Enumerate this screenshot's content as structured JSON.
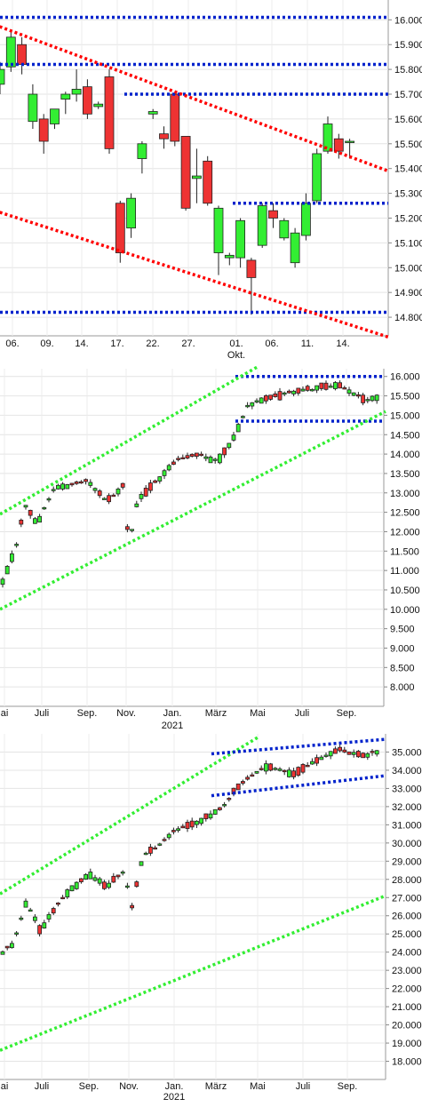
{
  "chart_data": [
    {
      "type": "candlestick",
      "title": "",
      "y_ticks": [
        16000,
        15900,
        15800,
        15700,
        15600,
        15500,
        15400,
        15300,
        15200,
        15100,
        15000,
        14900,
        14800
      ],
      "y_tick_labels": [
        "16.000",
        "15.900",
        "15.800",
        "15.700",
        "15.600",
        "15.500",
        "15.400",
        "15.300",
        "15.200",
        "15.100",
        "15.000",
        "14.900",
        "14.800"
      ],
      "ylim": [
        14725,
        16080
      ],
      "x_ticks": [
        "06.",
        "09.",
        "14.",
        "17.",
        "22.",
        "27.",
        "01.",
        "06.",
        "11.",
        "14."
      ],
      "x_sub_labels": {
        "01.": "Okt."
      },
      "grid": true,
      "candles": [
        {
          "o": 15740,
          "h": 15830,
          "l": 15700,
          "c": 15800
        },
        {
          "o": 15810,
          "h": 15960,
          "l": 15790,
          "c": 15930
        },
        {
          "o": 15900,
          "h": 15930,
          "l": 15780,
          "c": 15820
        },
        {
          "o": 15590,
          "h": 15740,
          "l": 15560,
          "c": 15700
        },
        {
          "o": 15600,
          "h": 15620,
          "l": 15460,
          "c": 15510
        },
        {
          "o": 15580,
          "h": 15640,
          "l": 15560,
          "c": 15640
        },
        {
          "o": 15680,
          "h": 15710,
          "l": 15620,
          "c": 15700
        },
        {
          "o": 15700,
          "h": 15800,
          "l": 15670,
          "c": 15720
        },
        {
          "o": 15730,
          "h": 15760,
          "l": 15600,
          "c": 15620
        },
        {
          "o": 15650,
          "h": 15670,
          "l": 15640,
          "c": 15660
        },
        {
          "o": 15770,
          "h": 15800,
          "l": 15460,
          "c": 15480
        },
        {
          "o": 15260,
          "h": 15270,
          "l": 15020,
          "c": 15060
        },
        {
          "o": 15160,
          "h": 15300,
          "l": 15120,
          "c": 15280
        },
        {
          "o": 15440,
          "h": 15510,
          "l": 15380,
          "c": 15500
        },
        {
          "o": 15620,
          "h": 15640,
          "l": 15600,
          "c": 15630
        },
        {
          "o": 15540,
          "h": 15570,
          "l": 15480,
          "c": 15520
        },
        {
          "o": 15700,
          "h": 15710,
          "l": 15490,
          "c": 15510
        },
        {
          "o": 15530,
          "h": 15530,
          "l": 15230,
          "c": 15240
        },
        {
          "o": 15360,
          "h": 15480,
          "l": 15260,
          "c": 15370
        },
        {
          "o": 15430,
          "h": 15450,
          "l": 15250,
          "c": 15260
        },
        {
          "o": 15060,
          "h": 15250,
          "l": 14970,
          "c": 15240
        },
        {
          "o": 15040,
          "h": 15060,
          "l": 15010,
          "c": 15050
        },
        {
          "o": 15040,
          "h": 15200,
          "l": 15000,
          "c": 15190
        },
        {
          "o": 15030,
          "h": 15040,
          "l": 14810,
          "c": 14960
        },
        {
          "o": 15090,
          "h": 15260,
          "l": 15080,
          "c": 15250
        },
        {
          "o": 15230,
          "h": 15260,
          "l": 15160,
          "c": 15200
        },
        {
          "o": 15120,
          "h": 15200,
          "l": 15110,
          "c": 15190
        },
        {
          "o": 15020,
          "h": 15160,
          "l": 15000,
          "c": 15140
        },
        {
          "o": 15130,
          "h": 15300,
          "l": 15110,
          "c": 15260
        },
        {
          "o": 15270,
          "h": 15480,
          "l": 15260,
          "c": 15460
        },
        {
          "o": 15470,
          "h": 15610,
          "l": 15460,
          "c": 15580
        },
        {
          "o": 15520,
          "h": 15540,
          "l": 15440,
          "c": 15470
        },
        {
          "o": 15510,
          "h": 15520,
          "l": 15440,
          "c": 15510
        }
      ],
      "horizontal_lines": [
        16010,
        15820,
        15700,
        15260,
        14820
      ],
      "trend_lines": [
        {
          "color": "#ff0000",
          "from": [
            0,
            15980
          ],
          "to": [
            33,
            15390
          ]
        },
        {
          "color": "#ff0000",
          "from": [
            0,
            15230
          ],
          "to": [
            33,
            14720
          ]
        }
      ]
    },
    {
      "type": "candlestick",
      "title": "",
      "y_ticks": [
        16000,
        15500,
        15000,
        14500,
        14000,
        13500,
        13000,
        12500,
        12000,
        11500,
        11000,
        10500,
        10000,
        9500,
        9000,
        8500,
        8000
      ],
      "y_tick_labels": [
        "16.000",
        "15.500",
        "15.000",
        "14.500",
        "14.000",
        "13.500",
        "13.000",
        "12.500",
        "12.000",
        "11.500",
        "11.000",
        "10.500",
        "10.000",
        "9.500",
        "9.000",
        "8.500",
        "8.000"
      ],
      "ylim": [
        7500,
        16200
      ],
      "x_ticks": [
        "ai",
        "Juli",
        "Sep.",
        "Nov.",
        "Jan.",
        "März",
        "Mai",
        "Juli",
        "Sep."
      ],
      "x_sub_labels": {
        "Jan.": "2021"
      },
      "grid": true,
      "horizontal_lines": [
        16000,
        14850
      ],
      "trend_lines": [
        {
          "color": "#33ee33",
          "from": [
            0,
            12450
          ],
          "to": [
            1,
            16250
          ]
        },
        {
          "color": "#33ee33",
          "from": [
            0,
            10000
          ],
          "to": [
            1,
            15100
          ]
        }
      ]
    },
    {
      "type": "candlestick",
      "title": "",
      "y_ticks": [
        35000,
        34000,
        33000,
        32000,
        31000,
        30000,
        29000,
        28000,
        27000,
        26000,
        25000,
        24000,
        23000,
        22000,
        21000,
        20000,
        19000,
        18000
      ],
      "y_tick_labels": [
        "35.000",
        "34.000",
        "33.000",
        "32.000",
        "31.000",
        "30.000",
        "29.000",
        "28.000",
        "27.000",
        "26.000",
        "25.000",
        "24.000",
        "23.000",
        "22.000",
        "21.000",
        "20.000",
        "19.000",
        "18.000"
      ],
      "ylim": [
        17000,
        36000
      ],
      "x_ticks": [
        "ai",
        "Juli",
        "Sep.",
        "Nov.",
        "Jan.",
        "März",
        "Mai",
        "Juli",
        "Sep."
      ],
      "x_sub_labels": {
        "Jan.": "2021"
      },
      "grid": true,
      "trend_lines": [
        {
          "color": "#33ee33",
          "from": [
            0,
            27200
          ],
          "to": [
            1,
            35800
          ]
        },
        {
          "color": "#33ee33",
          "from": [
            0,
            18600
          ],
          "to": [
            1,
            27100
          ]
        },
        {
          "color": "#0022cc",
          "from": [
            0,
            34900
          ],
          "to": [
            1,
            35700
          ]
        },
        {
          "color": "#0022cc",
          "from": [
            0,
            32600
          ],
          "to": [
            1,
            33700
          ]
        }
      ]
    }
  ]
}
